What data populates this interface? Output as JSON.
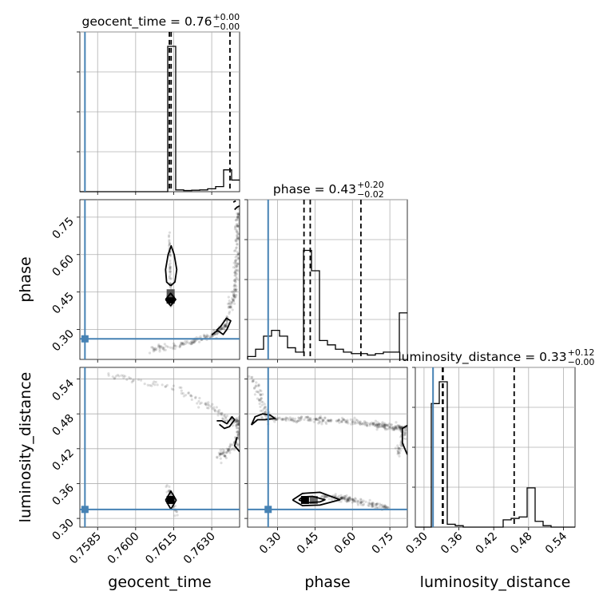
{
  "chart_data": {
    "type": "corner",
    "parameters": [
      "geocent_time",
      "phase",
      "luminosity_distance"
    ],
    "axis_labels": {
      "x": [
        "geocent_time",
        "phase",
        "luminosity_distance"
      ],
      "y": [
        "phase",
        "luminosity_distance"
      ]
    },
    "ranges": {
      "geocent_time": [
        0.7578,
        0.7641
      ],
      "phase": [
        0.18,
        0.82
      ],
      "luminosity_distance": [
        0.285,
        0.56
      ]
    },
    "ticks": {
      "geocent_time": [
        "0.7585",
        "0.7600",
        "0.7615",
        "0.7630"
      ],
      "phase": [
        "0.30",
        "0.45",
        "0.60",
        "0.75"
      ],
      "luminosity_distance": [
        "0.30",
        "0.36",
        "0.42",
        "0.48",
        "0.54"
      ]
    },
    "tick_values": {
      "geocent_time": [
        0.7585,
        0.76,
        0.7615,
        0.763
      ],
      "phase": [
        0.3,
        0.45,
        0.6,
        0.75
      ],
      "luminosity_distance": [
        0.3,
        0.36,
        0.42,
        0.48,
        0.54
      ]
    },
    "diag_titles": [
      {
        "param": "geocent_time",
        "median": "0.76",
        "plus": "+0.00",
        "minus": "−0.00"
      },
      {
        "param": "phase",
        "median": "0.43",
        "plus": "+0.20",
        "minus": "−0.02"
      },
      {
        "param": "luminosity_distance",
        "median": "0.33",
        "plus": "+0.12",
        "minus": "−0.00"
      }
    ],
    "truths": {
      "geocent_time": 0.758,
      "phase": 0.2624,
      "luminosity_distance": 0.3155
    },
    "truth_color": "#4682b4",
    "quantiles": {
      "geocent_time": [
        0.76133,
        0.7614,
        0.76372
      ],
      "phase": [
        0.406,
        0.431,
        0.634
      ],
      "luminosity_distance": [
        0.3318,
        0.3328,
        0.4552
      ]
    },
    "histograms": {
      "geocent_time": {
        "bins": 20,
        "counts": [
          0,
          0,
          0,
          0,
          0,
          0,
          0,
          0,
          0,
          0,
          0,
          1.0,
          0.012,
          0.008,
          0.01,
          0.012,
          0.02,
          0.035,
          0.15,
          0.08
        ]
      },
      "phase": {
        "bins": 20,
        "counts": [
          0.02,
          0.07,
          0.16,
          0.2,
          0.16,
          0.08,
          0.05,
          0.75,
          0.61,
          0.13,
          0.1,
          0.07,
          0.05,
          0.04,
          0.04,
          0.03,
          0.04,
          0.05,
          0.05,
          0.32
        ]
      },
      "luminosity_distance": {
        "bins": 20,
        "counts": [
          0,
          0,
          0.85,
          1.0,
          0.02,
          0.01,
          0,
          0,
          0,
          0,
          0,
          0.05,
          0.06,
          0.07,
          0.27,
          0.04,
          0.01,
          0,
          0,
          0
        ]
      }
    }
  }
}
